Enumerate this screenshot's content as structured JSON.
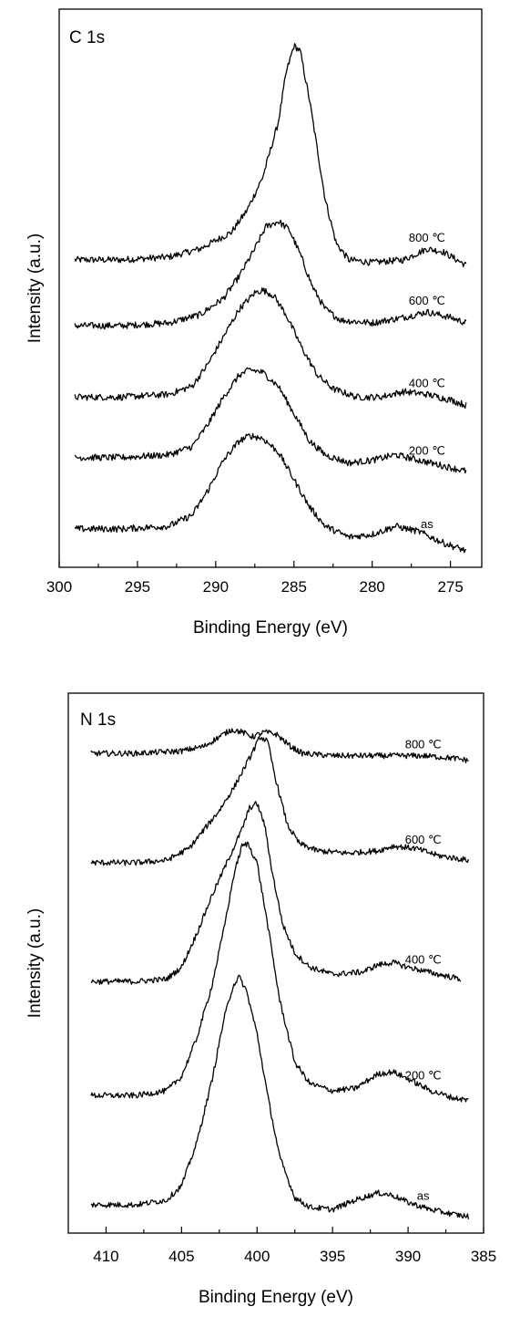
{
  "chart_data": [
    {
      "type": "line",
      "panel_label": "C 1s",
      "xlabel": "Binding Energy (eV)",
      "ylabel": "Intensity (a.u.)",
      "xlim": [
        300,
        273
      ],
      "x_reversed": true,
      "x_ticks": [
        300,
        295,
        290,
        285,
        280,
        275
      ],
      "y_ticks_shown": false,
      "series": [
        {
          "name": "800 ℃",
          "label_at_x": 276.5,
          "points": [
            [
              299,
              0.61
            ],
            [
              296,
              0.61
            ],
            [
              293,
              0.615
            ],
            [
              291,
              0.63
            ],
            [
              289,
              0.66
            ],
            [
              288,
              0.7
            ],
            [
              287,
              0.76
            ],
            [
              286,
              0.86
            ],
            [
              285.5,
              0.95
            ],
            [
              285,
              1.0
            ],
            [
              284.6,
              0.99
            ],
            [
              284,
              0.9
            ],
            [
              283,
              0.72
            ],
            [
              282.3,
              0.64
            ],
            [
              281.5,
              0.61
            ],
            [
              280,
              0.605
            ],
            [
              278,
              0.61
            ],
            [
              276.5,
              0.63
            ],
            [
              275.5,
              0.625
            ],
            [
              274,
              0.6
            ]
          ]
        },
        {
          "name": "600 ℃",
          "label_at_x": 276.5,
          "points": [
            [
              299,
              0.49
            ],
            [
              296,
              0.49
            ],
            [
              293,
              0.495
            ],
            [
              291,
              0.51
            ],
            [
              289.5,
              0.54
            ],
            [
              288.5,
              0.58
            ],
            [
              287.5,
              0.63
            ],
            [
              286.8,
              0.67
            ],
            [
              286,
              0.68
            ],
            [
              285.3,
              0.665
            ],
            [
              284.6,
              0.62
            ],
            [
              283.8,
              0.56
            ],
            [
              283,
              0.52
            ],
            [
              282,
              0.5
            ],
            [
              280,
              0.495
            ],
            [
              278,
              0.505
            ],
            [
              276.5,
              0.515
            ],
            [
              275,
              0.505
            ],
            [
              274,
              0.495
            ]
          ]
        },
        {
          "name": "400 ℃",
          "label_at_x": 276.5,
          "points": [
            [
              299,
              0.36
            ],
            [
              296,
              0.36
            ],
            [
              293,
              0.365
            ],
            [
              291.5,
              0.38
            ],
            [
              290.5,
              0.42
            ],
            [
              289.5,
              0.47
            ],
            [
              288.5,
              0.52
            ],
            [
              287.5,
              0.55
            ],
            [
              287,
              0.555
            ],
            [
              286.3,
              0.545
            ],
            [
              285.5,
              0.51
            ],
            [
              284.5,
              0.45
            ],
            [
              283.5,
              0.4
            ],
            [
              282.5,
              0.375
            ],
            [
              281,
              0.36
            ],
            [
              279.5,
              0.36
            ],
            [
              278,
              0.37
            ],
            [
              276.5,
              0.365
            ],
            [
              275,
              0.355
            ],
            [
              274,
              0.345
            ]
          ]
        },
        {
          "name": "200 ℃",
          "label_at_x": 276.5,
          "points": [
            [
              299,
              0.25
            ],
            [
              296,
              0.25
            ],
            [
              293,
              0.255
            ],
            [
              291.5,
              0.27
            ],
            [
              290.5,
              0.31
            ],
            [
              289.5,
              0.36
            ],
            [
              288.5,
              0.4
            ],
            [
              287.8,
              0.41
            ],
            [
              287,
              0.405
            ],
            [
              286,
              0.38
            ],
            [
              285,
              0.33
            ],
            [
              284,
              0.28
            ],
            [
              283,
              0.255
            ],
            [
              281.5,
              0.24
            ],
            [
              280,
              0.245
            ],
            [
              278.5,
              0.255
            ],
            [
              277,
              0.245
            ],
            [
              275.5,
              0.235
            ],
            [
              274,
              0.225
            ]
          ]
        },
        {
          "name": "as",
          "label_at_x": 276.5,
          "points": [
            [
              299,
              0.12
            ],
            [
              296,
              0.12
            ],
            [
              293,
              0.125
            ],
            [
              291.5,
              0.145
            ],
            [
              290.5,
              0.19
            ],
            [
              289.5,
              0.245
            ],
            [
              288.5,
              0.28
            ],
            [
              287.8,
              0.29
            ],
            [
              287,
              0.285
            ],
            [
              286,
              0.26
            ],
            [
              285,
              0.21
            ],
            [
              284,
              0.16
            ],
            [
              283,
              0.125
            ],
            [
              281.5,
              0.105
            ],
            [
              280,
              0.11
            ],
            [
              278.5,
              0.125
            ],
            [
              277,
              0.115
            ],
            [
              275.5,
              0.095
            ],
            [
              274,
              0.08
            ]
          ]
        }
      ]
    },
    {
      "type": "line",
      "panel_label": "N 1s",
      "xlabel": "Binding Energy (eV)",
      "ylabel": "Intensity (a.u.)",
      "xlim": [
        412.5,
        385
      ],
      "x_reversed": true,
      "x_ticks": [
        410,
        405,
        400,
        395,
        390,
        385
      ],
      "y_ticks_shown": false,
      "series": [
        {
          "name": "800 ℃",
          "label_at_x": 389,
          "points": [
            [
              411,
              0.92
            ],
            [
              408,
              0.92
            ],
            [
              405,
              0.925
            ],
            [
              403.5,
              0.935
            ],
            [
              402.5,
              0.955
            ],
            [
              401.7,
              0.97
            ],
            [
              401,
              0.965
            ],
            [
              400.3,
              0.955
            ],
            [
              399.5,
              0.965
            ],
            [
              398.7,
              0.96
            ],
            [
              397.8,
              0.935
            ],
            [
              397,
              0.92
            ],
            [
              395,
              0.915
            ],
            [
              392,
              0.915
            ],
            [
              389,
              0.915
            ],
            [
              387,
              0.91
            ],
            [
              386,
              0.905
            ]
          ]
        },
        {
          "name": "600 ℃",
          "label_at_x": 389,
          "points": [
            [
              411,
              0.69
            ],
            [
              408,
              0.69
            ],
            [
              406,
              0.695
            ],
            [
              404.5,
              0.72
            ],
            [
              403.5,
              0.76
            ],
            [
              402.5,
              0.8
            ],
            [
              401.5,
              0.85
            ],
            [
              400.5,
              0.91
            ],
            [
              399.8,
              0.955
            ],
            [
              399.3,
              0.945
            ],
            [
              398.8,
              0.87
            ],
            [
              398,
              0.77
            ],
            [
              397.2,
              0.73
            ],
            [
              396,
              0.715
            ],
            [
              394,
              0.71
            ],
            [
              392,
              0.715
            ],
            [
              391,
              0.725
            ],
            [
              389.5,
              0.72
            ],
            [
              388,
              0.705
            ],
            [
              386,
              0.695
            ]
          ]
        },
        {
          "name": "400 ℃",
          "label_at_x": 389,
          "points": [
            [
              411,
              0.44
            ],
            [
              408,
              0.44
            ],
            [
              406,
              0.445
            ],
            [
              405,
              0.47
            ],
            [
              404,
              0.54
            ],
            [
              403,
              0.62
            ],
            [
              402,
              0.69
            ],
            [
              401,
              0.76
            ],
            [
              400.5,
              0.805
            ],
            [
              400,
              0.815
            ],
            [
              399.5,
              0.77
            ],
            [
              399,
              0.67
            ],
            [
              398.3,
              0.56
            ],
            [
              397.5,
              0.5
            ],
            [
              396.5,
              0.47
            ],
            [
              395,
              0.455
            ],
            [
              393,
              0.46
            ],
            [
              392,
              0.475
            ],
            [
              391,
              0.48
            ],
            [
              390,
              0.47
            ],
            [
              388,
              0.455
            ],
            [
              386.5,
              0.445
            ]
          ]
        },
        {
          "name": "200 ℃",
          "label_at_x": 389,
          "points": [
            [
              411,
              0.2
            ],
            [
              408,
              0.2
            ],
            [
              406,
              0.21
            ],
            [
              405,
              0.24
            ],
            [
              404,
              0.32
            ],
            [
              403,
              0.43
            ],
            [
              402.2,
              0.55
            ],
            [
              401.5,
              0.67
            ],
            [
              401,
              0.725
            ],
            [
              400.6,
              0.73
            ],
            [
              400,
              0.69
            ],
            [
              399.3,
              0.56
            ],
            [
              398.5,
              0.4
            ],
            [
              397.5,
              0.27
            ],
            [
              396.5,
              0.225
            ],
            [
              395,
              0.21
            ],
            [
              393.5,
              0.215
            ],
            [
              392,
              0.245
            ],
            [
              391,
              0.25
            ],
            [
              390,
              0.235
            ],
            [
              388.5,
              0.21
            ],
            [
              387,
              0.195
            ],
            [
              386,
              0.19
            ]
          ]
        },
        {
          "name": "as",
          "label_at_x": 389,
          "points": [
            [
              411,
              -0.03
            ],
            [
              408,
              -0.03
            ],
            [
              406,
              -0.02
            ],
            [
              405,
              0.01
            ],
            [
              404,
              0.1
            ],
            [
              403,
              0.23
            ],
            [
              402.2,
              0.36
            ],
            [
              401.6,
              0.43
            ],
            [
              401.2,
              0.45
            ],
            [
              400.7,
              0.42
            ],
            [
              400,
              0.33
            ],
            [
              399.3,
              0.2
            ],
            [
              398.5,
              0.07
            ],
            [
              397.5,
              -0.015
            ],
            [
              396.5,
              -0.035
            ],
            [
              395,
              -0.04
            ],
            [
              393.5,
              -0.02
            ],
            [
              392,
              -0.005
            ],
            [
              391,
              -0.01
            ],
            [
              390,
              -0.025
            ],
            [
              388.5,
              -0.04
            ],
            [
              387,
              -0.05
            ],
            [
              386,
              -0.055
            ]
          ]
        }
      ]
    }
  ]
}
